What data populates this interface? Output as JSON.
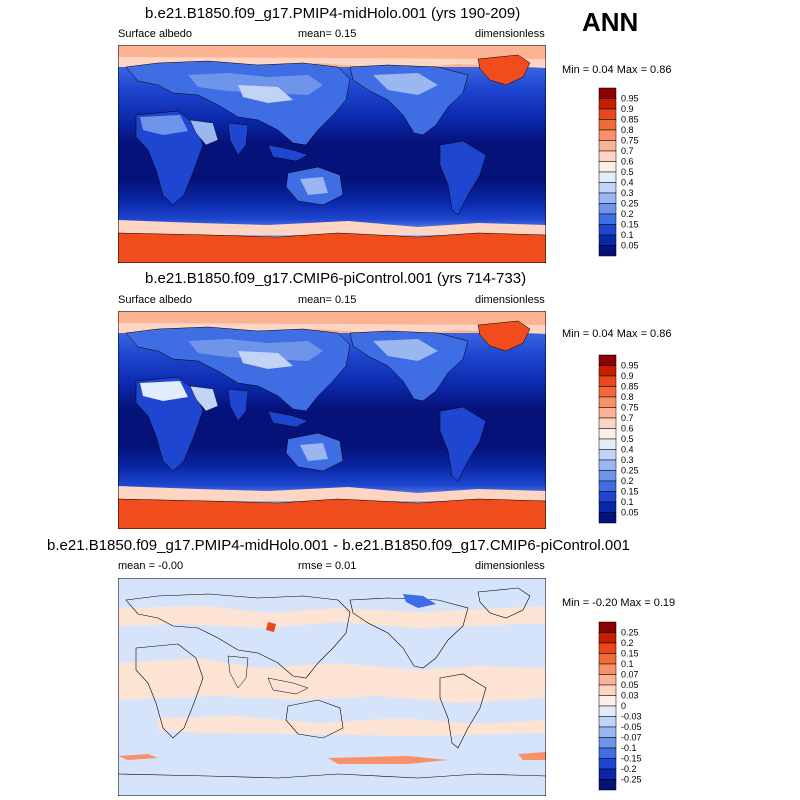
{
  "figure_label": "ANN",
  "panels": [
    {
      "title": "b.e21.B1850.f09_g17.PMIP4-midHolo.001 (yrs 190-209)",
      "left_label": "Surface albedo",
      "center_label": "mean=   0.15",
      "right_label": "dimensionless",
      "minmax": "Min =   0.04 Max =   0.86",
      "colorbar": {
        "labels": [
          "0.95",
          "0.9",
          "0.85",
          "0.8",
          "0.75",
          "0.7",
          "0.6",
          "0.5",
          "0.4",
          "0.3",
          "0.25",
          "0.2",
          "0.15",
          "0.1",
          "0.05"
        ],
        "colors": [
          "#8b0000",
          "#c81e00",
          "#e8481c",
          "#f26a3a",
          "#f8906a",
          "#fbb394",
          "#fdd5c2",
          "#fdeee6",
          "#e3ecfb",
          "#c2d4f6",
          "#9ab7f1",
          "#6f95ea",
          "#3f6de3",
          "#1e46d0",
          "#0a27a8",
          "#05127a"
        ]
      }
    },
    {
      "title": "b.e21.B1850.f09_g17.CMIP6-piControl.001 (yrs 714-733)",
      "left_label": "Surface albedo",
      "center_label": "mean=   0.15",
      "right_label": "dimensionless",
      "minmax": "Min =   0.04 Max =   0.86",
      "colorbar": {
        "labels": [
          "0.95",
          "0.9",
          "0.85",
          "0.8",
          "0.75",
          "0.7",
          "0.6",
          "0.5",
          "0.4",
          "0.3",
          "0.25",
          "0.2",
          "0.15",
          "0.1",
          "0.05"
        ],
        "colors": [
          "#8b0000",
          "#c81e00",
          "#e8481c",
          "#f26a3a",
          "#f8906a",
          "#fbb394",
          "#fdd5c2",
          "#fdeee6",
          "#e3ecfb",
          "#c2d4f6",
          "#9ab7f1",
          "#6f95ea",
          "#3f6de3",
          "#1e46d0",
          "#0a27a8",
          "#05127a"
        ]
      }
    },
    {
      "title": "b.e21.B1850.f09_g17.PMIP4-midHolo.001 - b.e21.B1850.f09_g17.CMIP6-piControl.001",
      "left_label": "mean =  -0.00",
      "center_label": "rmse =   0.01",
      "right_label": "dimensionless",
      "minmax": "Min =  -0.20 Max =   0.19",
      "colorbar": {
        "labels": [
          "0.25",
          "0.2",
          "0.15",
          "0.1",
          "0.07",
          "0.05",
          "0.03",
          "0",
          "-0.03",
          "-0.05",
          "-0.07",
          "-0.1",
          "-0.15",
          "-0.2",
          "-0.25"
        ],
        "colors": [
          "#8b0000",
          "#c81e00",
          "#e8481c",
          "#f26a3a",
          "#f8906a",
          "#fbb394",
          "#fdd5c2",
          "#fdeee6",
          "#e3ecfb",
          "#c2d4f6",
          "#9ab7f1",
          "#6f95ea",
          "#3f6de3",
          "#1e46d0",
          "#0a27a8",
          "#05127a"
        ]
      }
    }
  ],
  "colors": {
    "ocean": "#05127a",
    "ocean_mid": "#0a27a8",
    "ocean_light": "#1e46d0",
    "land": "#1e46d0",
    "ice": "#f04c1c",
    "snow": "#fdd5c2",
    "diff_neg": "#d6e4fb",
    "diff_pos": "#fde3d4"
  }
}
